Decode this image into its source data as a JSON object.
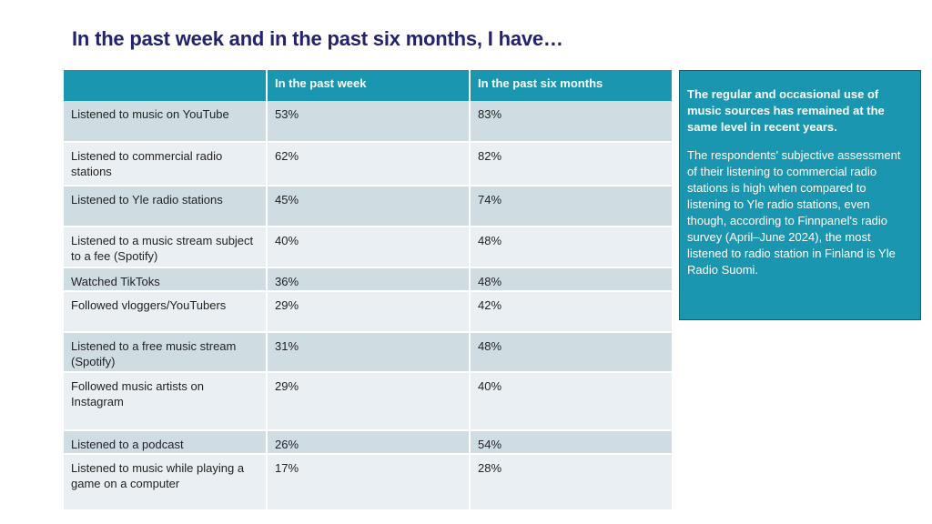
{
  "title": "In the past week and in the past six months, I have…",
  "table": {
    "headers": [
      "",
      "In the past week",
      "In the past six months"
    ],
    "rows": [
      {
        "label": "Listened to music on YouTube",
        "week": "53%",
        "six_months": "83%"
      },
      {
        "label": "Listened to commercial radio stations",
        "week": "62%",
        "six_months": "82%"
      },
      {
        "label": "Listened to Yle radio stations",
        "week": "45%",
        "six_months": "74%"
      },
      {
        "label": "Listened to a music stream subject to a fee (Spotify)",
        "week": "40%",
        "six_months": "48%"
      },
      {
        "label": "Watched TikToks",
        "week": "36%",
        "six_months": "48%"
      },
      {
        "label": "Followed vloggers/YouTubers",
        "week": "29%",
        "six_months": "42%"
      },
      {
        "label": "Listened to a free music stream (Spotify)",
        "week": "31%",
        "six_months": "48%"
      },
      {
        "label": "Followed music artists on Instagram",
        "week": "29%",
        "six_months": "40%"
      },
      {
        "label": "Listened to a podcast",
        "week": "26%",
        "six_months": "54%"
      },
      {
        "label": "Listened to music while playing a game on a computer",
        "week": "17%",
        "six_months": "28%"
      }
    ]
  },
  "side_box": {
    "lead": "The regular and occasional use of music sources has remained at the same level in recent years.",
    "body": "The respondents' subjective assessment of their listening to commercial radio stations is high when compared to listening to Yle radio stations, even though, according to Finnpanel's radio survey (April–June 2024), the most listened to radio station in Finland is Yle Radio Suomi."
  },
  "colors": {
    "title": "#22226e",
    "header_bg": "#1a96b0",
    "row_dark": "#cfdde3",
    "row_light": "#e9eff2",
    "box_bg": "#1a96b0"
  }
}
